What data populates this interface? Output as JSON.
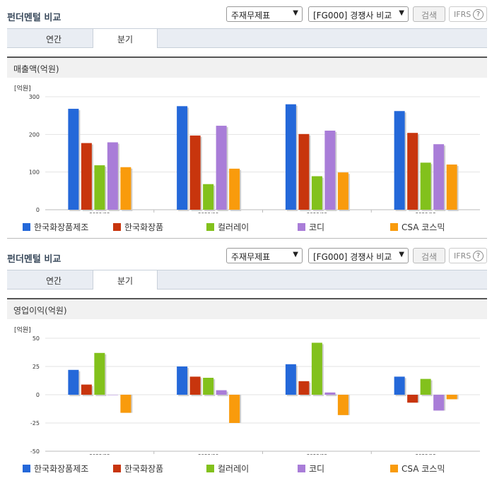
{
  "header": {
    "title": "펀더멘털 비교",
    "select_statement": "주재무제표",
    "select_compare": "[FG000] 경쟁사 비교",
    "search_label": "검색",
    "ifrs_label": "IFRS",
    "help_icon": "?"
  },
  "tabs": [
    {
      "label": "연간",
      "active": false
    },
    {
      "label": "분기",
      "active": true
    }
  ],
  "colors": {
    "series": [
      "#2468d9",
      "#c8350d",
      "#82c11c",
      "#a97dd8",
      "#f99b0c"
    ]
  },
  "chart_data": [
    {
      "type": "bar",
      "title": "매출액(억원)",
      "unit_label": "[억원]",
      "categories": [
        "2023/03",
        "2023/06",
        "2023/09",
        "2023/12"
      ],
      "ylim": [
        0,
        300
      ],
      "yticks": [
        0,
        100,
        200,
        300
      ],
      "grid": true,
      "legend_position": "bottom",
      "series": [
        {
          "name": "한국화장품제조",
          "values": [
            268,
            275,
            280,
            262
          ]
        },
        {
          "name": "한국화장품",
          "values": [
            177,
            197,
            201,
            204
          ]
        },
        {
          "name": "컬러레이",
          "values": [
            118,
            68,
            89,
            125
          ]
        },
        {
          "name": "코디",
          "values": [
            179,
            223,
            210,
            174
          ]
        },
        {
          "name": "CSA 코스믹",
          "values": [
            113,
            109,
            99,
            120
          ]
        }
      ]
    },
    {
      "type": "bar",
      "title": "영업이익(억원)",
      "unit_label": "[억원]",
      "categories": [
        "2023/03",
        "2023/06",
        "2023/09",
        "2023/12"
      ],
      "ylim": [
        -50,
        50
      ],
      "yticks": [
        -50,
        -25,
        0,
        25,
        50
      ],
      "grid": true,
      "legend_position": "bottom",
      "series": [
        {
          "name": "한국화장품제조",
          "values": [
            22,
            25,
            27,
            16
          ]
        },
        {
          "name": "한국화장품",
          "values": [
            9,
            16,
            12,
            -7
          ]
        },
        {
          "name": "컬러레이",
          "values": [
            37,
            15,
            46,
            14
          ]
        },
        {
          "name": "코디",
          "values": [
            0,
            4,
            2,
            -14
          ]
        },
        {
          "name": "CSA 코스믹",
          "values": [
            -16,
            -25,
            -18,
            -4
          ]
        }
      ]
    }
  ]
}
